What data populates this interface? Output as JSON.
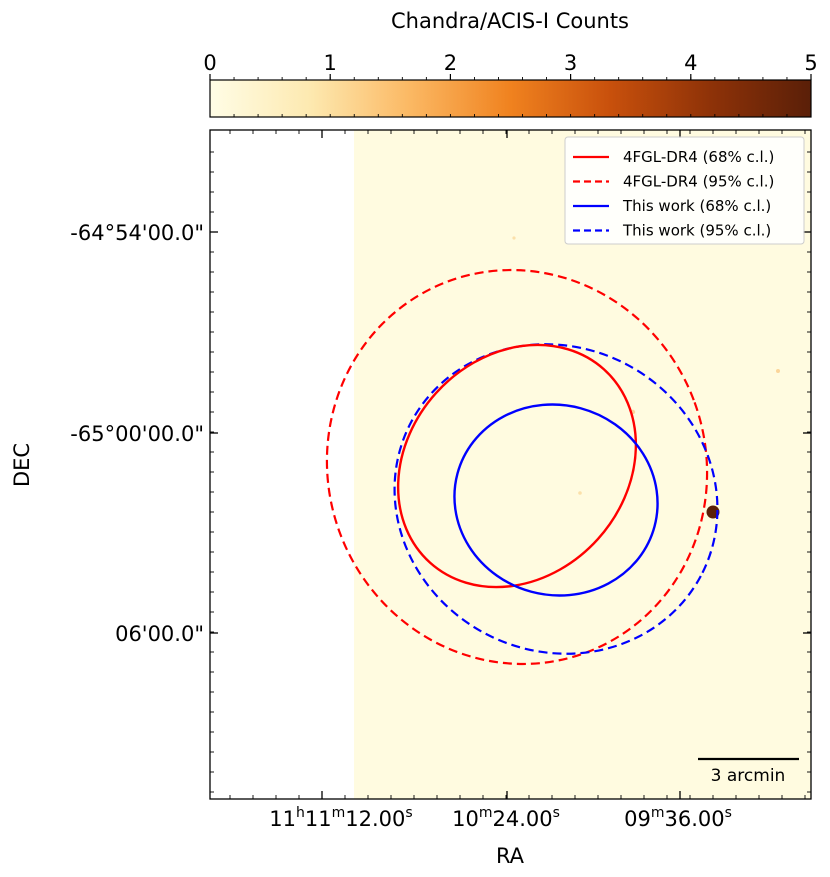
{
  "chart_data": {
    "type": "image",
    "colorbar": {
      "label": "Chandra/ACIS-I Counts",
      "range": [
        0,
        5
      ],
      "ticks": [
        "0",
        "1",
        "2",
        "3",
        "4",
        "5"
      ],
      "colormap": [
        "#fffde6",
        "#fde9b0",
        "#fbb863",
        "#f0821f",
        "#c8500c",
        "#8e3208",
        "#5a1f08"
      ]
    },
    "xlabel": "RA",
    "ylabel": "DEC",
    "x_ticks": [
      {
        "h": "11",
        "hu": "h",
        "m": "11",
        "mu": "m",
        "s": "12.00",
        "su": "s"
      },
      {
        "h": "",
        "hu": "",
        "m": "10",
        "mu": "m",
        "s": "24.00",
        "su": "s"
      },
      {
        "h": "",
        "hu": "",
        "m": "09",
        "mu": "m",
        "s": "36.00",
        "su": "s"
      }
    ],
    "y_ticks": [
      "-64°54'00.0\"",
      "-65°00'00.0\"",
      "06'00.0\""
    ],
    "scale_bar": {
      "label": "3 arcmin"
    },
    "legend": {
      "placement": "top-right",
      "entries": [
        {
          "label": "4FGL-DR4 (68% c.l.)",
          "color": "#ff0000",
          "style": "solid"
        },
        {
          "label": "4FGL-DR4 (95% c.l.)",
          "color": "#ff0000",
          "style": "dashed"
        },
        {
          "label": "This work (68% c.l.)",
          "color": "#0000ff",
          "style": "solid"
        },
        {
          "label": "This work (95% c.l.)",
          "color": "#0000ff",
          "style": "dashed"
        }
      ]
    }
  }
}
